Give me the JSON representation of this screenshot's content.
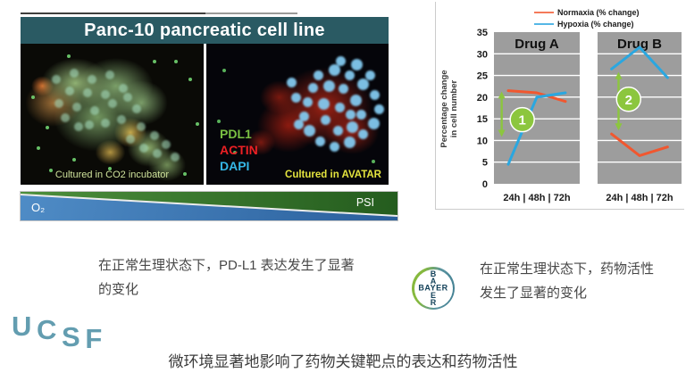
{
  "slide": {
    "title_panel": {
      "title": "Panc-10 pancreatic cell line",
      "bg_color": "#2a5a63"
    },
    "micrographs": {
      "left": {
        "caption": "Cultured in CO2 incubator"
      },
      "right": {
        "caption": "Cultured in AVATAR",
        "stains": [
          {
            "label": "PDL1",
            "color": "#7ac143"
          },
          {
            "label": "ACTIN",
            "color": "#ed2024"
          },
          {
            "label": "DAPI",
            "color": "#35b6e5"
          }
        ]
      }
    },
    "gradient_bar": {
      "left_label": "O₂",
      "right_label": "PSI",
      "blue": "#3c78b4",
      "green": "#39762c"
    },
    "notes": {
      "left": "在正常生理状态下，PD-L1 表达发生了显著\n的变化",
      "right": "在正常生理状态下，药物活性\n发生了显著的变化",
      "bottom": "微环境显著地影响了药物关键靶点的表达和药物活性"
    },
    "logos": {
      "ucsf": {
        "letters": [
          "U",
          "C",
          "S",
          "F"
        ],
        "color": "#639db0"
      },
      "bayer": {
        "word": "BAYER",
        "vertical_top": [
          "B",
          "A"
        ],
        "vertical_bottom": [
          "E",
          "R"
        ],
        "color": "#14425a"
      }
    }
  },
  "chart_data": {
    "type": "line",
    "ylabel": "Percentage change in cell number",
    "ylabel_lines": [
      "Percentage change",
      "in cell number"
    ],
    "ylim": [
      0,
      35
    ],
    "yticks": [
      35,
      30,
      25,
      20,
      15,
      10,
      5,
      0
    ],
    "x_categories": [
      "24h",
      "48h",
      "72h"
    ],
    "x_tick_label": "24h | 48h | 72h",
    "panel_bg": "#9d9d9d",
    "grid": true,
    "annotation_color": "#8cc63e",
    "legend_position": "top-right",
    "legend": [
      {
        "name": "Normaxia (% change)",
        "color": "#f47a5a"
      },
      {
        "name": "Hypoxia (% change)",
        "color": "#55b7e6"
      }
    ],
    "groups": [
      {
        "label": "Drug A",
        "series": [
          {
            "name": "Normaxia (% change)",
            "color": "#f1572f",
            "values": [
              21.5,
              21,
              19
            ]
          },
          {
            "name": "Hypoxia (% change)",
            "color": "#2aa7e0",
            "values": [
              4.5,
              20,
              21
            ]
          }
        ],
        "annotation": {
          "number": "1",
          "top": 21.3,
          "bottom": 10.8,
          "x_frac": 0.09,
          "circle_x_frac": 0.33,
          "circle_y": 14.8
        }
      },
      {
        "label": "Drug B",
        "series": [
          {
            "name": "Normaxia (% change)",
            "color": "#f1572f",
            "values": [
              11.5,
              6.5,
              8.5
            ]
          },
          {
            "name": "Hypoxia (% change)",
            "color": "#2aa7e0",
            "values": [
              26.5,
              31.5,
              24.5
            ]
          }
        ],
        "annotation": {
          "number": "2",
          "top": 25.8,
          "bottom": 12.3,
          "x_frac": 0.25,
          "circle_x_frac": 0.37,
          "circle_y": 19.5
        }
      }
    ]
  }
}
